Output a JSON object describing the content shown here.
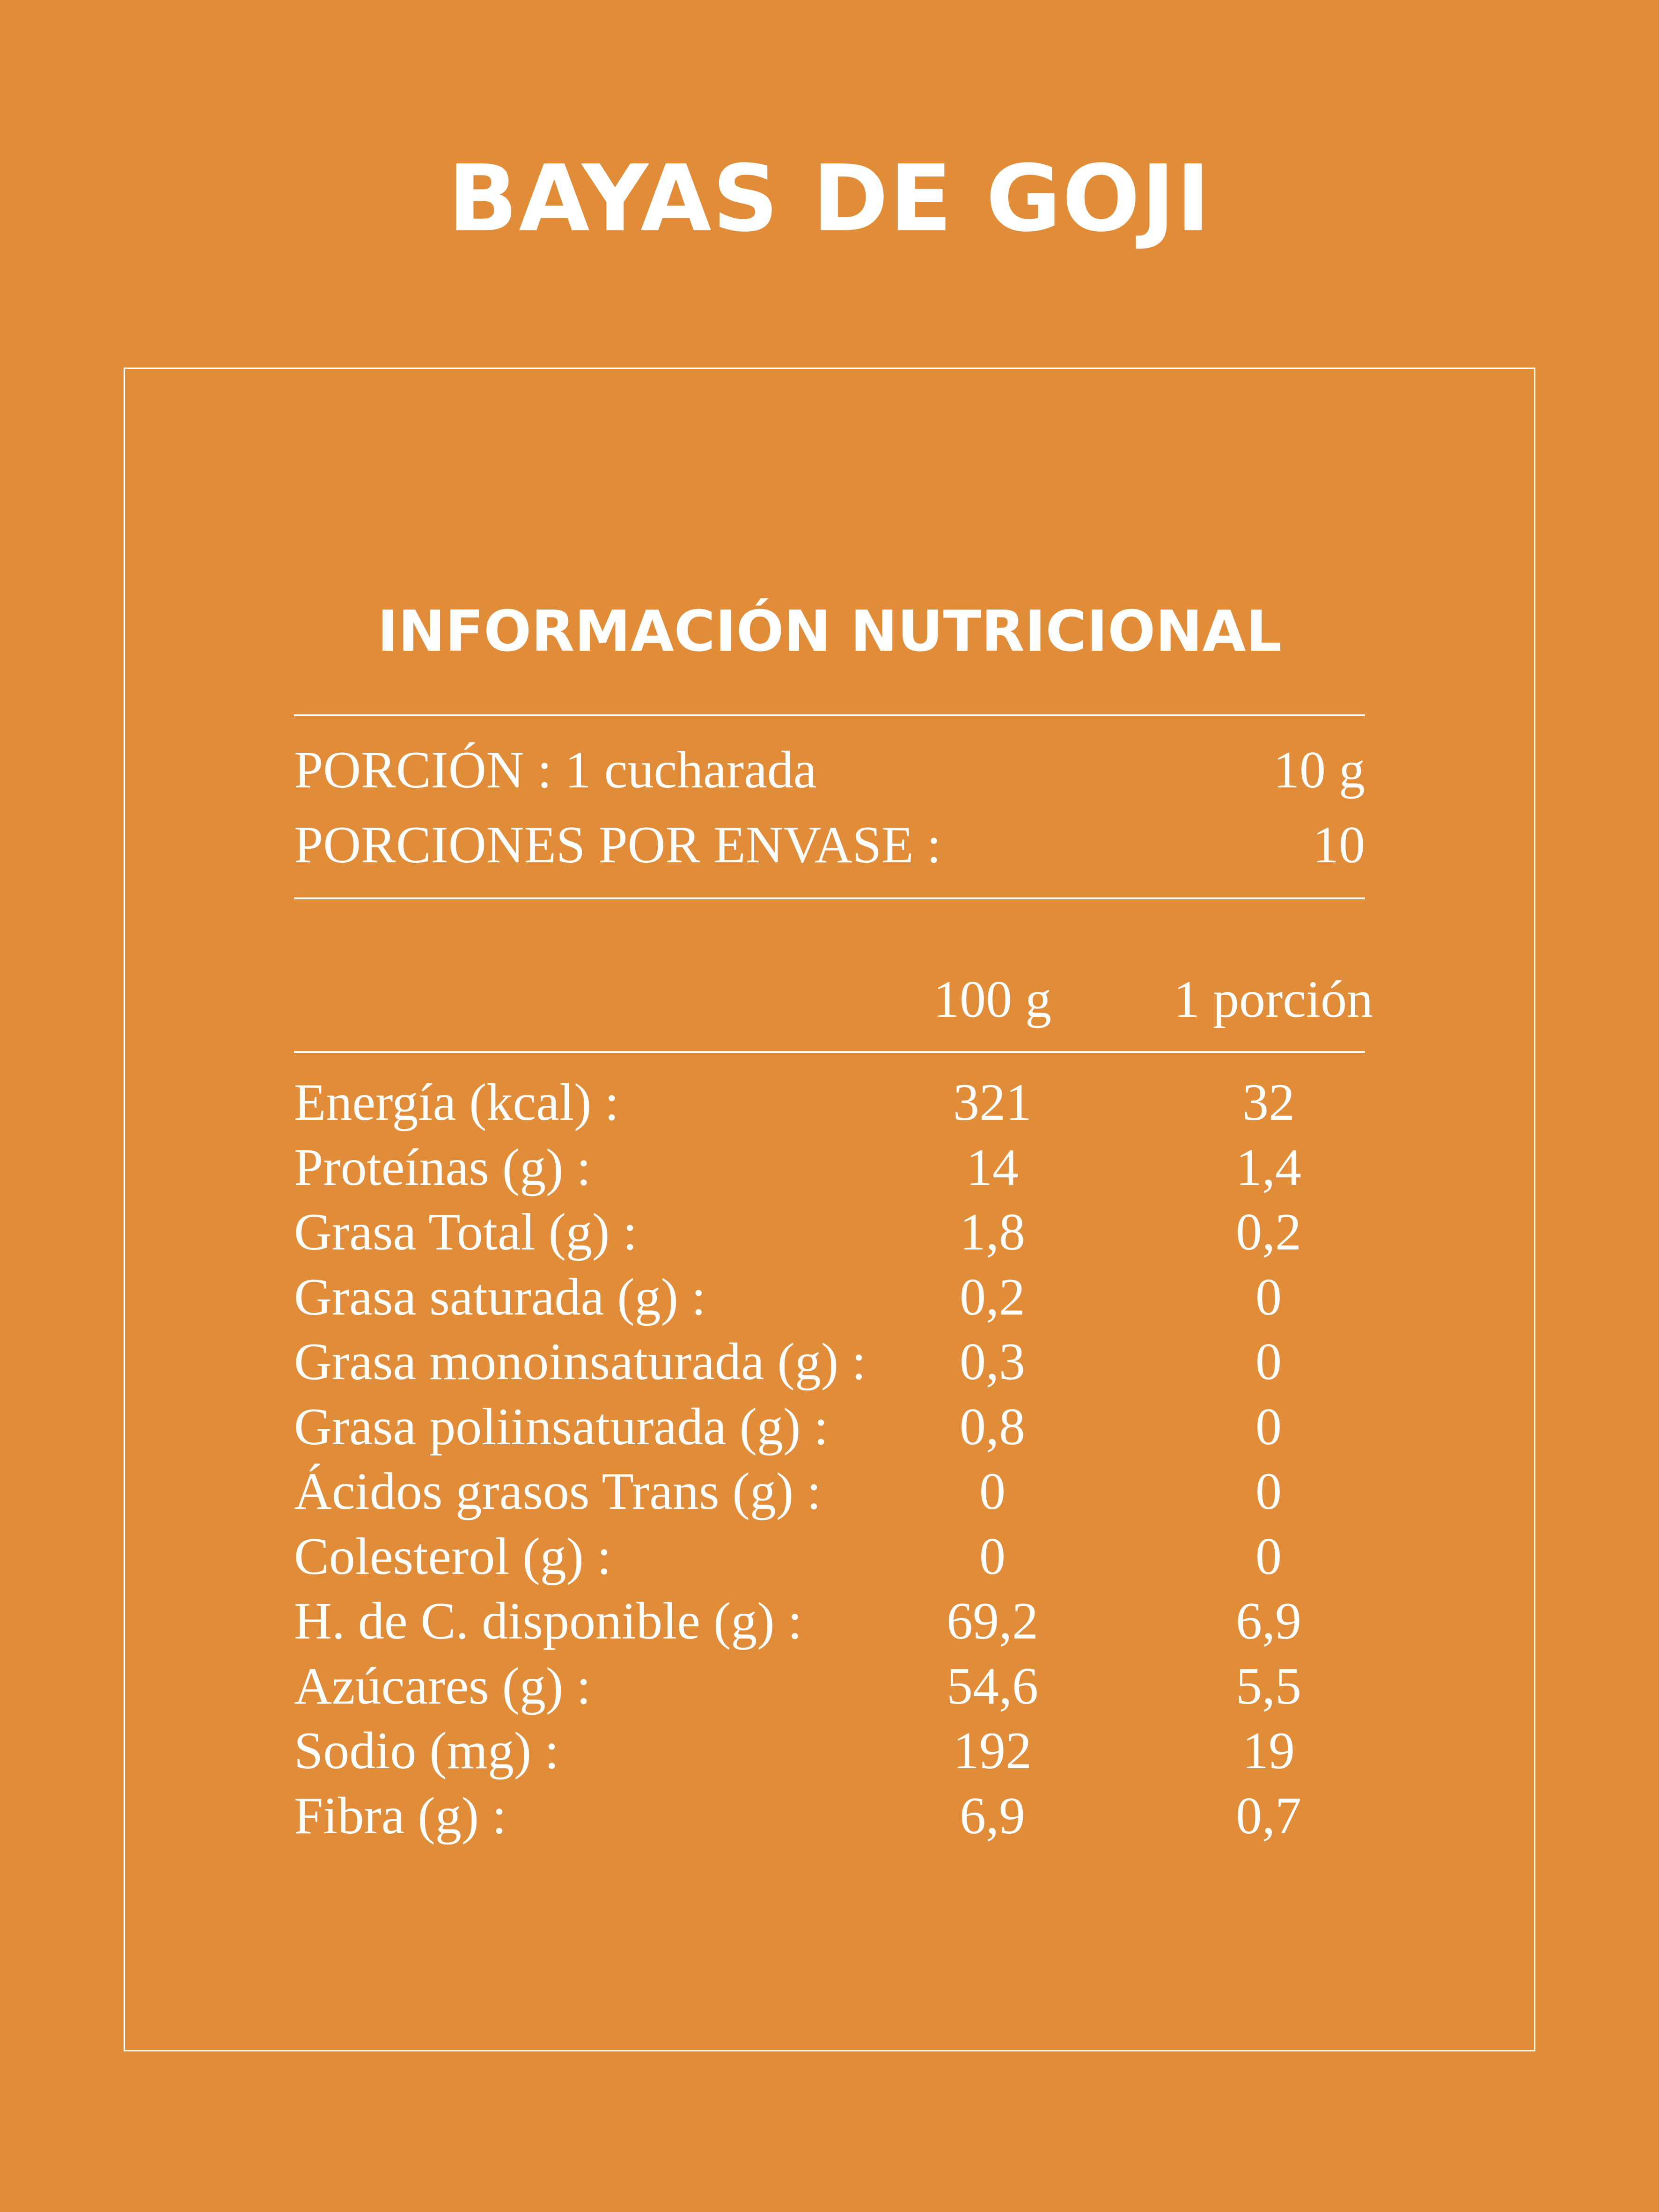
{
  "product_title": "BAYAS DE GOJI",
  "panel": {
    "heading": "INFORMACIÓN NUTRICIONAL",
    "serving": {
      "portion_label": "PORCIÓN : 1 cucharada",
      "portion_value": "10 g",
      "servings_label": "PORCIONES POR ENVASE :",
      "servings_value": "10"
    },
    "columns": {
      "per_100": "100  g",
      "per_portion": "1 porción"
    },
    "rows": [
      {
        "label": "Energía (kcal) :",
        "per_100": "321",
        "per_portion": "32"
      },
      {
        "label": "Proteínas (g) :",
        "per_100": "14",
        "per_portion": "1,4"
      },
      {
        "label": "Grasa Total (g) :",
        "per_100": "1,8",
        "per_portion": "0,2"
      },
      {
        "label": "Grasa saturada (g) :",
        "per_100": "0,2",
        "per_portion": "0"
      },
      {
        "label": "Grasa monoinsaturada (g) :",
        "per_100": "0,3",
        "per_portion": "0"
      },
      {
        "label": "Grasa poliinsaturada (g) :",
        "per_100": "0,8",
        "per_portion": "0"
      },
      {
        "label": "Ácidos grasos Trans (g) :",
        "per_100": "0",
        "per_portion": "0"
      },
      {
        "label": "Colesterol (g) :",
        "per_100": "0",
        "per_portion": "0"
      },
      {
        "label": "H. de C. disponible (g) :",
        "per_100": "69,2",
        "per_portion": "6,9"
      },
      {
        "label": "Azúcares (g) :",
        "per_100": "54,6",
        "per_portion": "5,5"
      },
      {
        "label": "Sodio (mg) :",
        "per_100": "192",
        "per_portion": "19"
      },
      {
        "label": "Fibra (g) :",
        "per_100": "6,9",
        "per_portion": "0,7"
      }
    ]
  }
}
